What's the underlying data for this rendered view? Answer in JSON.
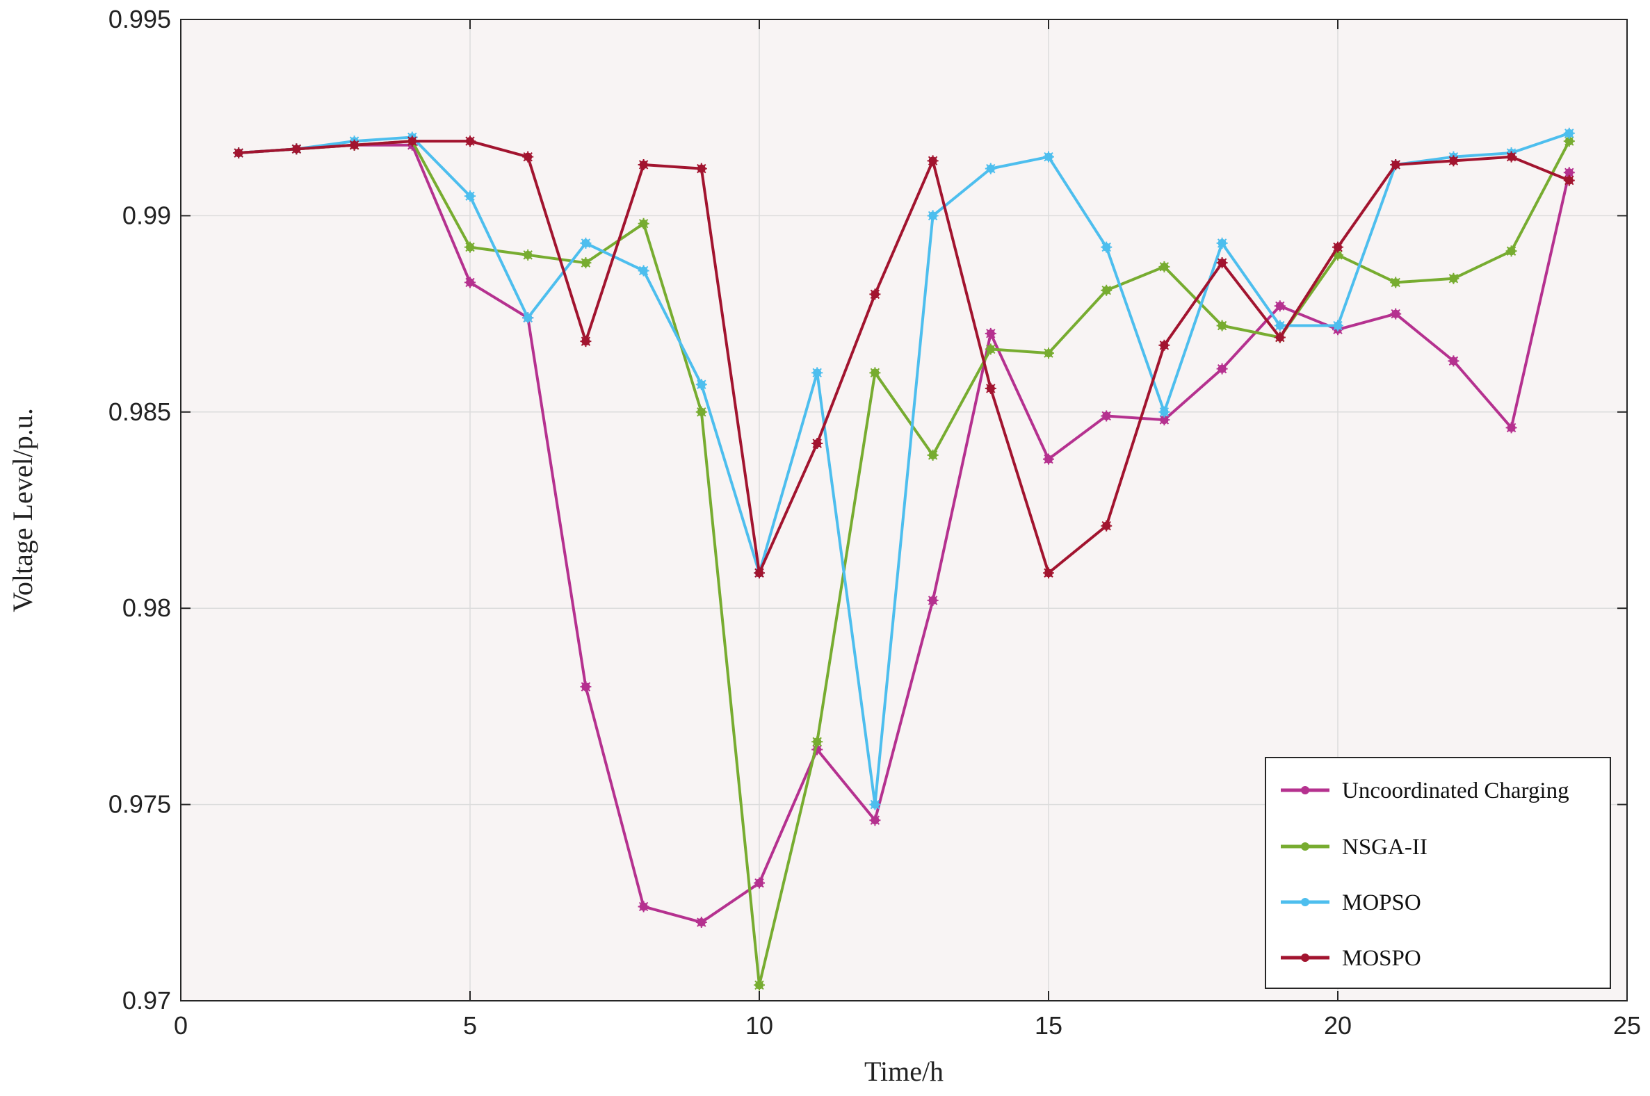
{
  "chart_data": {
    "type": "line",
    "title": "",
    "xlabel": "Time/h",
    "ylabel": "Voltage Level/p.u.",
    "xlim": [
      0,
      25
    ],
    "ylim": [
      0.97,
      0.995
    ],
    "xticks": [
      "0",
      "5",
      "10",
      "15",
      "20",
      "25"
    ],
    "yticks": [
      "0.97",
      "0.975",
      "0.98",
      "0.985",
      "0.99",
      "0.995"
    ],
    "grid": true,
    "legend_position": "bottom-right",
    "x": [
      1,
      2,
      3,
      4,
      5,
      6,
      7,
      8,
      9,
      10,
      11,
      12,
      13,
      14,
      15,
      16,
      17,
      18,
      19,
      20,
      21,
      22,
      23,
      24
    ],
    "series": [
      {
        "name": "Uncoordinated Charging",
        "color": "#b5318f",
        "values": [
          0.9916,
          0.9917,
          0.9918,
          0.9918,
          0.9883,
          0.9874,
          0.978,
          0.9724,
          0.972,
          0.973,
          0.9764,
          0.9746,
          0.9802,
          0.987,
          0.9838,
          0.9849,
          0.9848,
          0.9861,
          0.9877,
          0.9871,
          0.9875,
          0.9863,
          0.9846,
          0.9911
        ]
      },
      {
        "name": "NSGA-II",
        "color": "#77ac30",
        "values": [
          0.9916,
          0.9917,
          0.9918,
          0.9919,
          0.9892,
          0.989,
          0.9888,
          0.9898,
          0.985,
          0.9704,
          0.9766,
          0.986,
          0.9839,
          0.9866,
          0.9865,
          0.9881,
          0.9887,
          0.9872,
          0.9869,
          0.989,
          0.9883,
          0.9884,
          0.9891,
          0.9919
        ]
      },
      {
        "name": "MOPSO",
        "color": "#4dbeee",
        "values": [
          0.9916,
          0.9917,
          0.9919,
          0.992,
          0.9905,
          0.9874,
          0.9893,
          0.9886,
          0.9857,
          0.9809,
          0.986,
          0.975,
          0.99,
          0.9912,
          0.9915,
          0.9892,
          0.985,
          0.9893,
          0.9872,
          0.9872,
          0.9913,
          0.9915,
          0.9916,
          0.9921
        ]
      },
      {
        "name": "MOSPO",
        "color": "#a2142f",
        "values": [
          0.9916,
          0.9917,
          0.9918,
          0.9919,
          0.9919,
          0.9915,
          0.9868,
          0.9913,
          0.9912,
          0.9809,
          0.9842,
          0.988,
          0.9914,
          0.9856,
          0.9809,
          0.9821,
          0.9867,
          0.9888,
          0.9869,
          0.9892,
          0.9913,
          0.9914,
          0.9915,
          0.9909
        ]
      }
    ]
  }
}
